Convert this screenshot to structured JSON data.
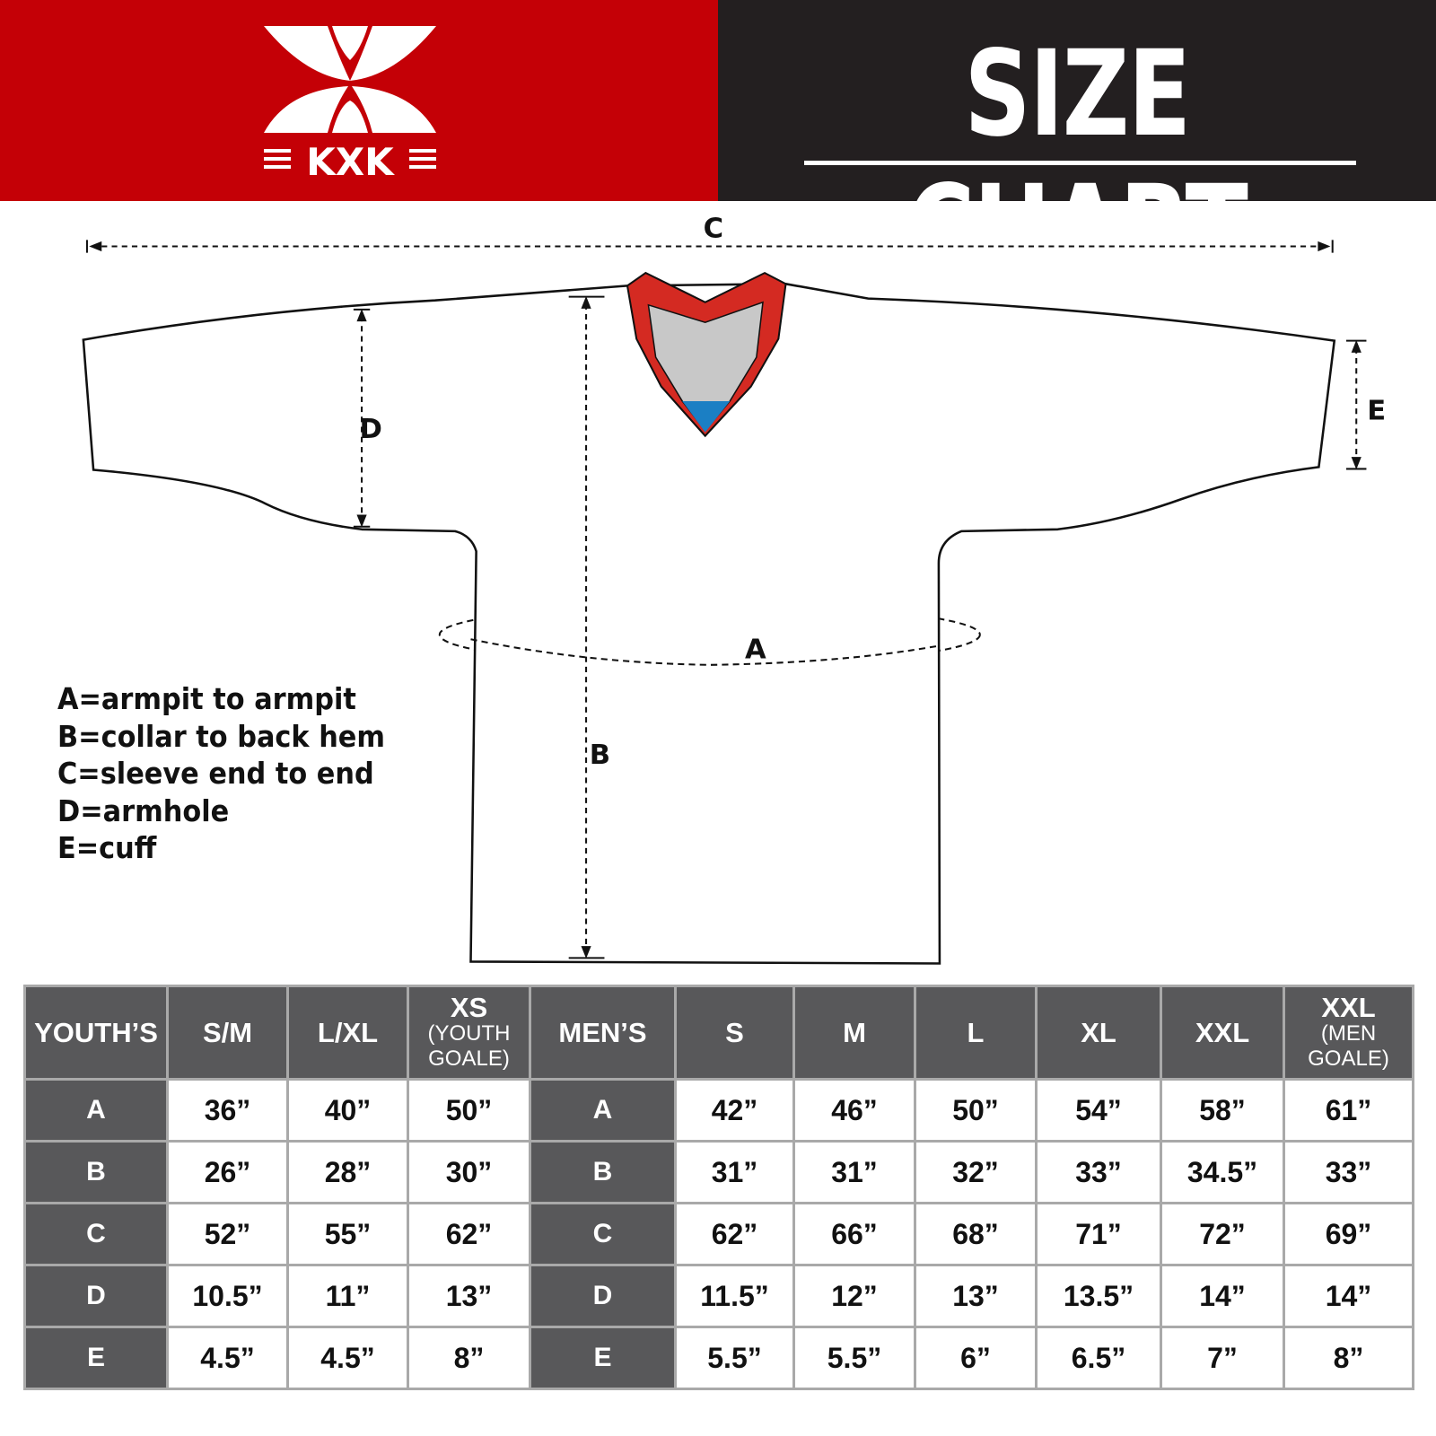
{
  "brand": {
    "logo_text": "KXK",
    "color": "#c40006"
  },
  "header": {
    "title": "SIZE CHART"
  },
  "diagram": {
    "labels": {
      "a": "A",
      "b": "B",
      "c": "C",
      "d": "D",
      "e": "E"
    },
    "legend": [
      "A=armpit to armpit",
      "B=collar to back hem",
      "C=sleeve end to end",
      "D=armhole",
      "E=cuff"
    ],
    "collar_colors": {
      "trim": "#d42a22",
      "inner": "#c8c8c8",
      "tag": "#1b7fc4"
    }
  },
  "table": {
    "youth_header": "YOUTH’S",
    "youth_sizes": [
      {
        "main": "S/M",
        "sub": ""
      },
      {
        "main": "L/XL",
        "sub": ""
      },
      {
        "main": "XS",
        "sub": "(YOUTH GOALE)"
      }
    ],
    "men_header": "MEN’S",
    "men_sizes": [
      {
        "main": "S",
        "sub": ""
      },
      {
        "main": "M",
        "sub": ""
      },
      {
        "main": "L",
        "sub": ""
      },
      {
        "main": "XL",
        "sub": ""
      },
      {
        "main": "XXL",
        "sub": ""
      },
      {
        "main": "XXL",
        "sub": "(MEN GOALE)"
      }
    ],
    "rows": [
      {
        "label": "A",
        "youth": [
          "36”",
          "40”",
          "50”"
        ],
        "men": [
          "42”",
          "46”",
          "50”",
          "54”",
          "58”",
          "61”"
        ]
      },
      {
        "label": "B",
        "youth": [
          "26”",
          "28”",
          "30”"
        ],
        "men": [
          "31”",
          "31”",
          "32”",
          "33”",
          "34.5”",
          "33”"
        ]
      },
      {
        "label": "C",
        "youth": [
          "52”",
          "55”",
          "62”"
        ],
        "men": [
          "62”",
          "66”",
          "68”",
          "71”",
          "72”",
          "69”"
        ]
      },
      {
        "label": "D",
        "youth": [
          "10.5”",
          "11”",
          "13”"
        ],
        "men": [
          "11.5”",
          "12”",
          "13”",
          "13.5”",
          "14”",
          "14”"
        ]
      },
      {
        "label": "E",
        "youth": [
          "4.5”",
          "4.5”",
          "8”"
        ],
        "men": [
          "5.5”",
          "5.5”",
          "6”",
          "6.5”",
          "7”",
          "8”"
        ]
      }
    ]
  }
}
